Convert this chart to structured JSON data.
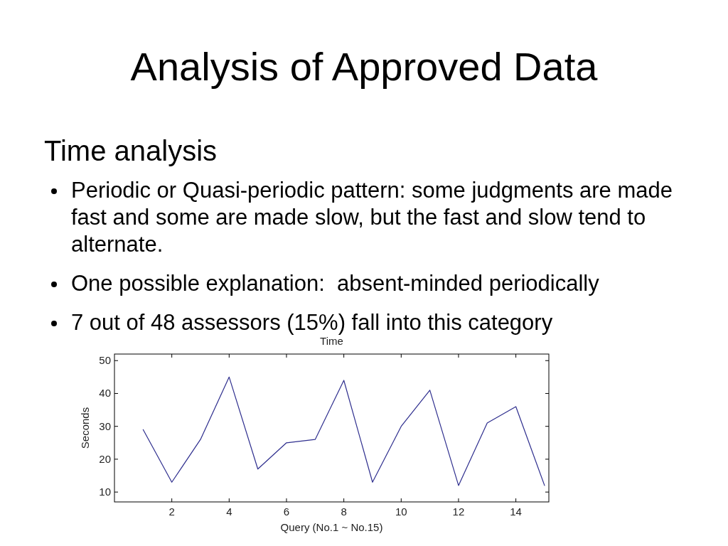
{
  "chart_data": {
    "type": "line",
    "title": "Analysis of Approved Data",
    "subtitle": "Time analysis",
    "annotations": [
      "Periodic or Quasi-periodic pattern: some judgments are made fast and some are made slow, but the fast and slow tend to alternate.",
      "One possible explanation:  absent-minded periodically",
      "7 out of 48 assessors (15%) fall into this category",
      "Time"
    ],
    "xlabel": "Query (No.1 ~ No.15)",
    "ylabel": "Seconds",
    "x": [
      1,
      2,
      3,
      4,
      5,
      6,
      7,
      8,
      9,
      10,
      11,
      12,
      13,
      14,
      15
    ],
    "series": [
      {
        "color": "#2e2e8e",
        "values": [
          29,
          13,
          26,
          45,
          17,
          25,
          26,
          44,
          13,
          30,
          41,
          12,
          31,
          36,
          12
        ]
      }
    ],
    "xlim": [
      0,
      15.15
    ],
    "xticks": [
      2,
      4,
      6,
      8,
      10,
      12,
      14
    ],
    "ylim": [
      7,
      52
    ],
    "yticks": [
      10,
      20,
      30,
      40,
      50
    ],
    "grid": false,
    "marker": "none",
    "line_style": "solid"
  }
}
